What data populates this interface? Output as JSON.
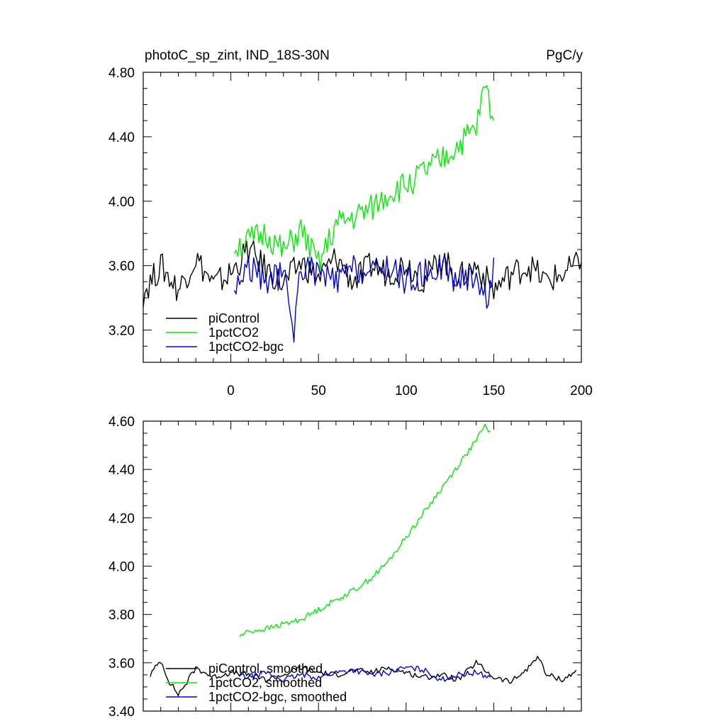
{
  "header": {
    "title": "photoC_sp_zint, IND_18S-30N",
    "units": "PgC/y"
  },
  "colors": {
    "piControl": "#000000",
    "1pctCO2": "#00ee00",
    "1pctCO2-bgc": "#0000dd"
  },
  "chart_data": [
    {
      "type": "line",
      "panel": "top",
      "title": "photoC_sp_zint, IND_18S-30N",
      "units": "PgC/y",
      "xlim": [
        -50,
        200
      ],
      "ylim": [
        3.0,
        4.8
      ],
      "xticks": [
        0,
        50,
        100,
        150,
        200
      ],
      "xtick_labels": [
        "0",
        "50",
        "100",
        "150",
        "200"
      ],
      "yticks": [
        3.2,
        3.6,
        4.0,
        4.4,
        4.8
      ],
      "ytick_labels": [
        "3.20",
        "3.60",
        "4.00",
        "4.40",
        "4.80"
      ],
      "legend": {
        "position": "bottom-left",
        "entries": [
          "piControl",
          "1pctCO2",
          "1pctCO2-bgc"
        ]
      },
      "series": [
        {
          "name": "piControl",
          "x": [
            -50,
            -40,
            -30,
            -20,
            -10,
            0,
            10,
            20,
            30,
            40,
            50,
            60,
            70,
            80,
            90,
            100,
            110,
            120,
            130,
            140,
            150,
            160,
            170,
            180,
            190,
            200
          ],
          "y": [
            3.43,
            3.6,
            3.45,
            3.65,
            3.48,
            3.55,
            3.7,
            3.58,
            3.48,
            3.62,
            3.52,
            3.65,
            3.5,
            3.6,
            3.55,
            3.62,
            3.5,
            3.65,
            3.52,
            3.6,
            3.45,
            3.55,
            3.6,
            3.5,
            3.55,
            3.62
          ]
        },
        {
          "name": "1pctCO2",
          "x": [
            2,
            10,
            20,
            30,
            40,
            50,
            60,
            70,
            80,
            90,
            100,
            110,
            120,
            130,
            140,
            145,
            150
          ],
          "y": [
            3.72,
            3.75,
            3.8,
            3.68,
            3.82,
            3.6,
            3.85,
            3.9,
            3.95,
            4.05,
            4.1,
            4.18,
            4.25,
            4.35,
            4.45,
            4.72,
            4.5
          ]
        },
        {
          "name": "1pctCO2-bgc",
          "x": [
            2,
            10,
            20,
            30,
            36,
            40,
            50,
            60,
            70,
            80,
            90,
            100,
            110,
            120,
            130,
            140,
            147,
            150
          ],
          "y": [
            3.45,
            3.6,
            3.5,
            3.55,
            3.2,
            3.6,
            3.55,
            3.5,
            3.58,
            3.55,
            3.6,
            3.5,
            3.55,
            3.6,
            3.5,
            3.55,
            3.35,
            3.65
          ]
        }
      ]
    },
    {
      "type": "line",
      "panel": "bottom",
      "xlim": [
        -50,
        200
      ],
      "ylim": [
        3.4,
        4.6
      ],
      "xticks": [
        0,
        50,
        100,
        150,
        200
      ],
      "yticks": [
        3.4,
        3.6,
        3.8,
        4.0,
        4.2,
        4.4,
        4.6
      ],
      "ytick_labels": [
        "3.40",
        "3.60",
        "3.80",
        "4.00",
        "4.20",
        "4.40",
        "4.60"
      ],
      "legend": {
        "position": "bottom-left",
        "entries": [
          "piControl, smoothed",
          "1pctCO2, smoothed",
          "1pctCO2-bgc, smoothed"
        ]
      },
      "series": [
        {
          "name": "piControl, smoothed",
          "x": [
            -46,
            -40,
            -35,
            -30,
            -25,
            -20,
            -10,
            0,
            10,
            20,
            30,
            40,
            50,
            60,
            70,
            80,
            90,
            100,
            110,
            120,
            130,
            140,
            150,
            160,
            170,
            175,
            180,
            190,
            197
          ],
          "y": [
            3.55,
            3.61,
            3.52,
            3.47,
            3.52,
            3.58,
            3.54,
            3.56,
            3.55,
            3.53,
            3.55,
            3.58,
            3.56,
            3.55,
            3.57,
            3.56,
            3.58,
            3.56,
            3.54,
            3.55,
            3.53,
            3.6,
            3.54,
            3.52,
            3.58,
            3.63,
            3.55,
            3.53,
            3.57
          ]
        },
        {
          "name": "1pctCO2, smoothed",
          "x": [
            5,
            10,
            20,
            30,
            40,
            50,
            60,
            70,
            80,
            90,
            100,
            110,
            120,
            130,
            140,
            145,
            148
          ],
          "y": [
            3.71,
            3.73,
            3.74,
            3.76,
            3.78,
            3.82,
            3.86,
            3.9,
            3.95,
            4.02,
            4.12,
            4.22,
            4.32,
            4.42,
            4.52,
            4.58,
            4.56
          ]
        },
        {
          "name": "1pctCO2-bgc, smoothed",
          "x": [
            5,
            10,
            20,
            30,
            40,
            50,
            60,
            70,
            80,
            90,
            100,
            110,
            120,
            130,
            140,
            148
          ],
          "y": [
            3.55,
            3.54,
            3.56,
            3.53,
            3.55,
            3.54,
            3.56,
            3.57,
            3.55,
            3.56,
            3.58,
            3.57,
            3.53,
            3.55,
            3.56,
            3.54
          ]
        }
      ]
    }
  ]
}
